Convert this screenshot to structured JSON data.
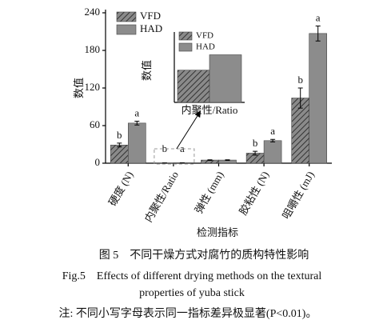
{
  "chart_data": {
    "type": "bar",
    "categories": [
      "硬度 (N)",
      "内聚性/Ratio",
      "弹性 (mm)",
      "胶粘性 (N)",
      "咀嚼性 (mJ)"
    ],
    "series": [
      {
        "name": "VFD",
        "color": "#7a7a7a",
        "values": [
          29,
          0.42,
          5,
          16,
          104
        ],
        "errors": [
          3,
          0.01,
          0.5,
          3,
          16
        ],
        "letters": [
          "b",
          "b",
          null,
          "b",
          "b"
        ]
      },
      {
        "name": "HAD",
        "color": "#8c8c8c",
        "values": [
          64,
          0.62,
          5,
          36,
          207
        ],
        "errors": [
          3,
          0.01,
          0.5,
          2,
          12
        ],
        "letters": [
          "a",
          "a",
          null,
          "a",
          "a"
        ]
      }
    ],
    "ylim": [
      0,
      240
    ],
    "yticks": [
      0,
      60,
      120,
      180,
      240
    ],
    "y_label": "数值",
    "x_label": "检测指标",
    "inset": {
      "category": "内聚性/Ratio",
      "y_label": "数值"
    },
    "caption": {
      "cn": "图 5　不同干燥方式对腐竹的质构特性影响",
      "en_line1": "Fig.5　Effects of different drying methods on the textural",
      "en_line2": "properties of yuba stick",
      "note": "注: 不同小写字母表示同一指标差异极显著(P<0.01)。"
    }
  }
}
